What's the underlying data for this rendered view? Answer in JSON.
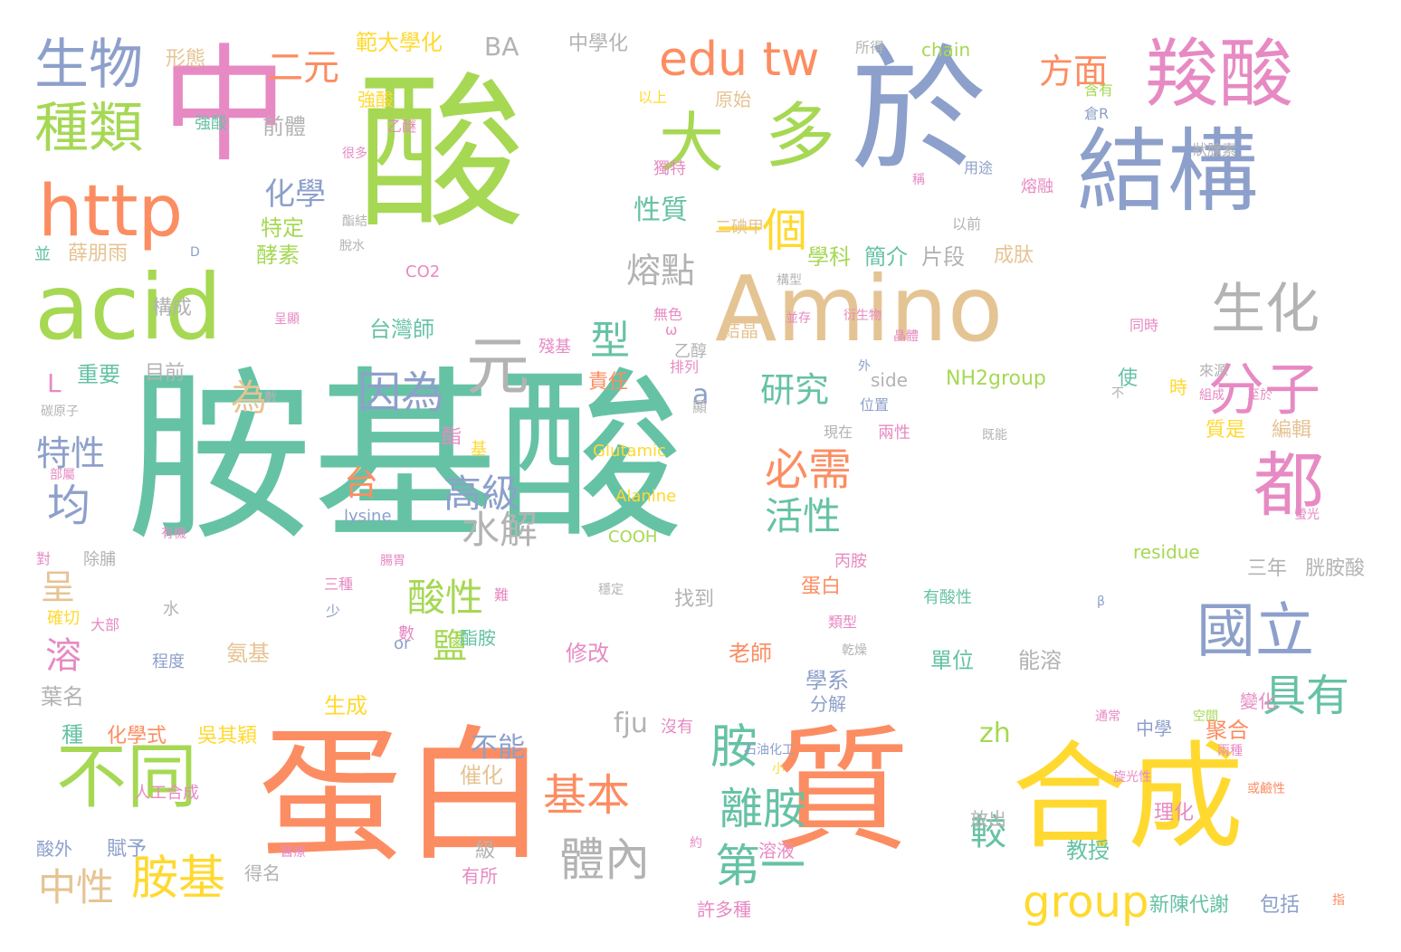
{
  "palette": {
    "teal": "#66c2a5",
    "orange": "#fc8d62",
    "blue": "#8da0cb",
    "pink": "#e78ac3",
    "green": "#a6d854",
    "yellow": "#ffd92f",
    "tan": "#e5c494",
    "gray": "#b3b3b3"
  },
  "words": [
    {
      "text": "胺基酸",
      "color": "#66c2a5"
    },
    {
      "text": "酸",
      "color": "#a6d854"
    },
    {
      "text": "於",
      "color": "#8da0cb"
    },
    {
      "text": "中",
      "color": "#e78ac3"
    },
    {
      "text": "蛋白",
      "color": "#fc8d62"
    },
    {
      "text": "質",
      "color": "#fc8d62"
    },
    {
      "text": "合成",
      "color": "#ffd92f"
    },
    {
      "text": "Amino",
      "color": "#e5c494"
    },
    {
      "text": "acid",
      "color": "#a6d854"
    },
    {
      "text": "結構",
      "color": "#8da0cb"
    },
    {
      "text": "羧酸",
      "color": "#e78ac3"
    },
    {
      "text": "http",
      "color": "#fc8d62"
    },
    {
      "text": "多",
      "color": "#a6d854"
    },
    {
      "text": "大",
      "color": "#a6d854"
    },
    {
      "text": "生物",
      "color": "#8da0cb"
    },
    {
      "text": "種類",
      "color": "#a6d854"
    },
    {
      "text": "不同",
      "color": "#a6d854"
    },
    {
      "text": "都",
      "color": "#e78ac3"
    },
    {
      "text": "edu tw",
      "color": "#fc8d62"
    },
    {
      "text": "元",
      "color": "#b3b3b3"
    },
    {
      "text": "生化",
      "color": "#b3b3b3"
    },
    {
      "text": "分子",
      "color": "#e78ac3"
    },
    {
      "text": "國立",
      "color": "#8da0cb"
    },
    {
      "text": "一個",
      "color": "#ffd92f"
    },
    {
      "text": "胺",
      "color": "#66c2a5"
    },
    {
      "text": "胺基",
      "color": "#ffd92f"
    },
    {
      "text": "必需",
      "color": "#fc8d62"
    },
    {
      "text": "基本",
      "color": "#fc8d62"
    },
    {
      "text": "離胺",
      "color": "#66c2a5"
    },
    {
      "text": "體內",
      "color": "#b3b3b3"
    },
    {
      "text": "group",
      "color": "#ffd92f"
    },
    {
      "text": "第一",
      "color": "#66c2a5"
    },
    {
      "text": "具有",
      "color": "#66c2a5"
    },
    {
      "text": "因為",
      "color": "#8da0cb"
    },
    {
      "text": "高級",
      "color": "#8da0cb"
    },
    {
      "text": "水解",
      "color": "#b3b3b3"
    },
    {
      "text": "活性",
      "color": "#66c2a5"
    },
    {
      "text": "研究",
      "color": "#66c2a5"
    },
    {
      "text": "酸性",
      "color": "#a6d854"
    },
    {
      "text": "均",
      "color": "#8da0cb"
    },
    {
      "text": "特性",
      "color": "#8da0cb"
    },
    {
      "text": "化學",
      "color": "#8da0cb"
    },
    {
      "text": "二元",
      "color": "#fc8d62"
    },
    {
      "text": "中性",
      "color": "#e5c494"
    },
    {
      "text": "熔點",
      "color": "#b3b3b3"
    },
    {
      "text": "性質",
      "color": "#66c2a5"
    },
    {
      "text": "方面",
      "color": "#fc8d62"
    },
    {
      "text": "型",
      "color": "#66c2a5"
    },
    {
      "text": "為",
      "color": "#e5c494"
    },
    {
      "text": "台",
      "color": "#fc8d62"
    },
    {
      "text": "鹽",
      "color": "#a6d854"
    },
    {
      "text": "溶",
      "color": "#e78ac3"
    },
    {
      "text": "呈",
      "color": "#e5c494"
    },
    {
      "text": "較",
      "color": "#66c2a5"
    },
    {
      "text": "不能",
      "color": "#8da0cb"
    },
    {
      "text": "fju",
      "color": "#b3b3b3"
    },
    {
      "text": "zh",
      "color": "#a6d854"
    },
    {
      "text": "BA",
      "color": "#b3b3b3"
    },
    {
      "text": "a",
      "color": "#8da0cb"
    },
    {
      "text": "L",
      "color": "#e78ac3"
    },
    {
      "text": "範大學化",
      "color": "#ffd92f"
    },
    {
      "text": "中學化",
      "color": "#b3b3b3"
    },
    {
      "text": "形態",
      "color": "#e5c494"
    },
    {
      "text": "chain",
      "color": "#a6d854"
    },
    {
      "text": "所得",
      "color": "#b3b3b3"
    },
    {
      "text": "以上",
      "color": "#ffd92f"
    },
    {
      "text": "原始",
      "color": "#e5c494"
    },
    {
      "text": "強酸",
      "color": "#ffd92f"
    },
    {
      "text": "含有",
      "color": "#a6d854"
    },
    {
      "text": "倉R",
      "color": "#8da0cb"
    },
    {
      "text": "前體",
      "color": "#b3b3b3"
    },
    {
      "text": "特定",
      "color": "#a6d854"
    },
    {
      "text": "酵素",
      "color": "#a6d854"
    },
    {
      "text": "薛朋雨",
      "color": "#e5c494"
    },
    {
      "text": "學科",
      "color": "#a6d854"
    },
    {
      "text": "簡介",
      "color": "#66c2a5"
    },
    {
      "text": "片段",
      "color": "#b3b3b3"
    },
    {
      "text": "成肽",
      "color": "#e5c494"
    },
    {
      "text": "CO2",
      "color": "#e78ac3"
    },
    {
      "text": "構成",
      "color": "#b3b3b3"
    },
    {
      "text": "台灣師",
      "color": "#66c2a5"
    },
    {
      "text": "重要",
      "color": "#66c2a5"
    },
    {
      "text": "目前",
      "color": "#b3b3b3"
    },
    {
      "text": "無色",
      "color": "#e78ac3"
    },
    {
      "text": "結晶",
      "color": "#e5c494"
    },
    {
      "text": "side",
      "color": "#b3b3b3"
    },
    {
      "text": "NH2group",
      "color": "#a6d854"
    },
    {
      "text": "使",
      "color": "#66c2a5"
    },
    {
      "text": "時",
      "color": "#ffd92f"
    },
    {
      "text": "責任",
      "color": "#fc8d62"
    },
    {
      "text": "殘基",
      "color": "#e78ac3"
    },
    {
      "text": "質是",
      "color": "#ffd92f"
    },
    {
      "text": "編輯",
      "color": "#e5c494"
    },
    {
      "text": "Glutamic",
      "color": "#ffd92f"
    },
    {
      "text": "Alanine",
      "color": "#ffd92f"
    },
    {
      "text": "lysine",
      "color": "#8da0cb"
    },
    {
      "text": "COOH",
      "color": "#a6d854"
    },
    {
      "text": "residue",
      "color": "#a6d854"
    },
    {
      "text": "三年",
      "color": "#b3b3b3"
    },
    {
      "text": "胱胺酸",
      "color": "#b3b3b3"
    },
    {
      "text": "蛋白",
      "color": "#fc8d62"
    },
    {
      "text": "丙胺",
      "color": "#e78ac3"
    },
    {
      "text": "找到",
      "color": "#b3b3b3"
    },
    {
      "text": "有酸性",
      "color": "#66c2a5"
    },
    {
      "text": "修改",
      "color": "#e78ac3"
    },
    {
      "text": "老師",
      "color": "#fc8d62"
    },
    {
      "text": "單位",
      "color": "#66c2a5"
    },
    {
      "text": "能溶",
      "color": "#b3b3b3"
    },
    {
      "text": "氨基",
      "color": "#e5c494"
    },
    {
      "text": "學系",
      "color": "#8da0cb"
    },
    {
      "text": "分解",
      "color": "#8da0cb"
    },
    {
      "text": "葉名",
      "color": "#b3b3b3"
    },
    {
      "text": "種",
      "color": "#66c2a5"
    },
    {
      "text": "化學式",
      "color": "#fc8d62"
    },
    {
      "text": "吳其穎",
      "color": "#ffd92f"
    },
    {
      "text": "生成",
      "color": "#ffd92f"
    },
    {
      "text": "中學",
      "color": "#8da0cb"
    },
    {
      "text": "聚合",
      "color": "#fc8d62"
    },
    {
      "text": "變化",
      "color": "#e78ac3"
    },
    {
      "text": "沒有",
      "color": "#e78ac3"
    },
    {
      "text": "催化",
      "color": "#e5c494"
    },
    {
      "text": "理化",
      "color": "#e78ac3"
    },
    {
      "text": "放出",
      "color": "#b3b3b3"
    },
    {
      "text": "教授",
      "color": "#66c2a5"
    },
    {
      "text": "溶液",
      "color": "#e78ac3"
    },
    {
      "text": "級",
      "color": "#b3b3b3"
    },
    {
      "text": "有所",
      "color": "#e78ac3"
    },
    {
      "text": "許多種",
      "color": "#e78ac3"
    },
    {
      "text": "新陳代謝",
      "color": "#66c2a5"
    },
    {
      "text": "包括",
      "color": "#8da0cb"
    },
    {
      "text": "賦予",
      "color": "#8da0cb"
    },
    {
      "text": "酸外",
      "color": "#8da0cb"
    },
    {
      "text": "得名",
      "color": "#b3b3b3"
    },
    {
      "text": "程度",
      "color": "#8da0cb"
    },
    {
      "text": "確切",
      "color": "#ffd92f"
    },
    {
      "text": "對",
      "color": "#e78ac3"
    },
    {
      "text": "除脯",
      "color": "#b3b3b3"
    },
    {
      "text": "水",
      "color": "#b3b3b3"
    },
    {
      "text": "數",
      "color": "#e78ac3"
    },
    {
      "text": "酯胺",
      "color": "#66c2a5"
    },
    {
      "text": "酯",
      "color": "#e78ac3"
    },
    {
      "text": "基",
      "color": "#ffd92f"
    },
    {
      "text": "碳原子",
      "color": "#b3b3b3"
    },
    {
      "text": "強酸",
      "color": "#66c2a5"
    },
    {
      "text": "並",
      "color": "#66c2a5"
    },
    {
      "text": "D",
      "color": "#8da0cb"
    },
    {
      "text": "二碘甲",
      "color": "#e5c494"
    },
    {
      "text": "狀腺素",
      "color": "#b3b3b3"
    },
    {
      "text": "熔融",
      "color": "#e78ac3"
    },
    {
      "text": "用途",
      "color": "#8da0cb"
    },
    {
      "text": "獨特",
      "color": "#e78ac3"
    },
    {
      "text": "以前",
      "color": "#b3b3b3"
    },
    {
      "text": "乙醚",
      "color": "#e78ac3"
    },
    {
      "text": "來源",
      "color": "#b3b3b3"
    },
    {
      "text": "同時",
      "color": "#e78ac3"
    },
    {
      "text": "排列",
      "color": "#e78ac3"
    },
    {
      "text": "兩性",
      "color": "#e78ac3"
    },
    {
      "text": "現在",
      "color": "#b3b3b3"
    },
    {
      "text": "位置",
      "color": "#8da0cb"
    },
    {
      "text": "至於",
      "color": "#e78ac3"
    },
    {
      "text": "組成",
      "color": "#e78ac3"
    },
    {
      "text": "不",
      "color": "#b3b3b3"
    },
    {
      "text": "β",
      "color": "#8da0cb"
    },
    {
      "text": "三種",
      "color": "#e78ac3"
    },
    {
      "text": "少",
      "color": "#8da0cb"
    },
    {
      "text": "類型",
      "color": "#e78ac3"
    },
    {
      "text": "旋光性",
      "color": "#e78ac3"
    },
    {
      "text": "或鹼性",
      "color": "#fc8d62"
    },
    {
      "text": "兩種",
      "color": "#e78ac3"
    },
    {
      "text": "空間",
      "color": "#a6d854"
    },
    {
      "text": "通常",
      "color": "#e78ac3"
    },
    {
      "text": "指",
      "color": "#fc8d62"
    },
    {
      "text": "石油化工",
      "color": "#8da0cb"
    },
    {
      "text": "小",
      "color": "#ffd92f"
    },
    {
      "text": "約",
      "color": "#e78ac3"
    },
    {
      "text": "醫療",
      "color": "#e78ac3"
    },
    {
      "text": "人工合成",
      "color": "#e78ac3"
    },
    {
      "text": "有機",
      "color": "#e78ac3"
    },
    {
      "text": "部屬",
      "color": "#e78ac3"
    },
    {
      "text": "腸胃",
      "color": "#e78ac3"
    },
    {
      "text": "難",
      "color": "#e78ac3"
    },
    {
      "text": "大部",
      "color": "#e78ac3"
    },
    {
      "text": "數",
      "color": "#b3b3b3"
    },
    {
      "text": "or",
      "color": "#8da0cb"
    },
    {
      "text": "乙醇",
      "color": "#b3b3b3"
    },
    {
      "text": "ω",
      "color": "#e78ac3"
    },
    {
      "text": "衍生物",
      "color": "#e78ac3"
    },
    {
      "text": "稱",
      "color": "#e78ac3"
    },
    {
      "text": "很多",
      "color": "#e78ac3"
    },
    {
      "text": "酯結",
      "color": "#b3b3b3"
    },
    {
      "text": "脫水",
      "color": "#b3b3b3"
    },
    {
      "text": "呈顯",
      "color": "#e78ac3"
    },
    {
      "text": "構型",
      "color": "#b3b3b3"
    },
    {
      "text": "並存",
      "color": "#e78ac3"
    },
    {
      "text": "晶體",
      "color": "#e78ac3"
    },
    {
      "text": "外",
      "color": "#8da0cb"
    },
    {
      "text": "既能",
      "color": "#b3b3b3"
    },
    {
      "text": "螢光",
      "color": "#e78ac3"
    },
    {
      "text": "穩定",
      "color": "#b3b3b3"
    },
    {
      "text": "乾燥",
      "color": "#b3b3b3"
    },
    {
      "text": "顯",
      "color": "#b3b3b3"
    }
  ]
}
